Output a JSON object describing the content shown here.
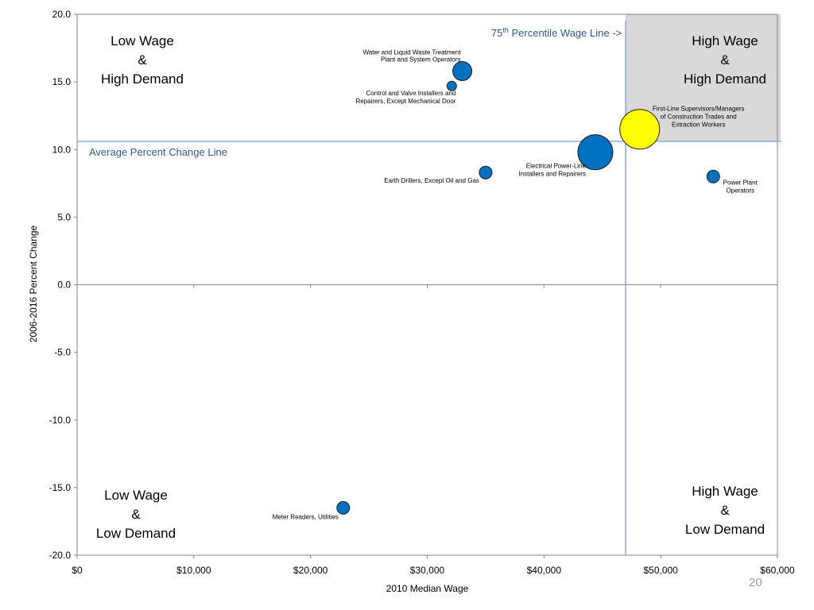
{
  "page_number": "20",
  "chart_data": {
    "type": "scatter",
    "xlabel": "2010 Median Wage",
    "ylabel": "2006-2016 Percent Change",
    "xlim": [
      0,
      60000
    ],
    "ylim": [
      -20,
      20
    ],
    "x_ticks": [
      0,
      10000,
      20000,
      30000,
      40000,
      50000,
      60000
    ],
    "x_tick_labels": [
      "$0",
      "$10,000",
      "$20,000",
      "$30,000",
      "$40,000",
      "$50,000",
      "$60,000"
    ],
    "y_ticks": [
      20,
      15,
      10,
      5,
      0,
      -5,
      -10,
      -15,
      -20
    ],
    "y_tick_labels": [
      "20.0",
      "15.0",
      "10.0",
      "5.0",
      "0.0",
      "-5.0",
      "-10.0",
      "-15.0",
      "-20.0"
    ],
    "grid": false,
    "highlight_region": {
      "x_from": 47000,
      "x_to": 60000,
      "y_from": 10.6,
      "y_to": 20,
      "color": "#d9d9d9"
    },
    "reference_lines": [
      {
        "orientation": "vertical",
        "value": 47000,
        "label": "75th Percentile Wage Line ->",
        "label_base": "75",
        "label_sup": "th",
        "label_rest": " Percentile Wage Line ->",
        "color": "#8eaadb"
      },
      {
        "orientation": "horizontal",
        "value": 10.6,
        "label": "Average Percent Change Line",
        "color": "#8eaadb"
      }
    ],
    "quadrant_labels": [
      {
        "id": "top-left",
        "lines": [
          "Low Wage",
          "&",
          "High Demand"
        ]
      },
      {
        "id": "top-right",
        "lines": [
          "High Wage",
          "&",
          "High Demand"
        ]
      },
      {
        "id": "bottom-left",
        "lines": [
          "Low Wage",
          "&",
          "Low Demand"
        ]
      },
      {
        "id": "bottom-right",
        "lines": [
          "High Wage",
          "&",
          "Low Demand"
        ]
      }
    ],
    "points": [
      {
        "label_lines": [
          "Water and Liquid Waste Treatment",
          "Plant and System Operators"
        ],
        "x": 33000,
        "y": 15.8,
        "size": 12,
        "color": "#0070c0",
        "label_pos": "above-left"
      },
      {
        "label_lines": [
          "Control and Valve Installers and",
          "Repairers, Except Mechanical Door"
        ],
        "x": 32100,
        "y": 14.7,
        "size": 6,
        "color": "#0070c0",
        "label_pos": "below-left"
      },
      {
        "label_lines": [
          "First-Line Supervisors/Managers",
          "of Construction Trades and",
          "Extraction Workers"
        ],
        "x": 48200,
        "y": 11.5,
        "size": 25,
        "color": "#ffff00",
        "label_pos": "upper-right"
      },
      {
        "label_lines": [
          "Electrical Power-Line",
          "Installers and Repairers"
        ],
        "x": 44400,
        "y": 9.8,
        "size": 22,
        "color": "#0070c0",
        "label_pos": "left"
      },
      {
        "label_lines": [
          "Earth Drillers, Except Oil and Gas"
        ],
        "x": 35000,
        "y": 8.3,
        "size": 8,
        "color": "#0070c0",
        "label_pos": "below-left"
      },
      {
        "label_lines": [
          "Power Plant",
          "Operators"
        ],
        "x": 54500,
        "y": 8.0,
        "size": 8,
        "color": "#0070c0",
        "label_pos": "below-right"
      },
      {
        "label_lines": [
          "Meter Readers, Utilities"
        ],
        "x": 22800,
        "y": -16.5,
        "size": 8,
        "color": "#0070c0",
        "label_pos": "below-left"
      }
    ]
  }
}
